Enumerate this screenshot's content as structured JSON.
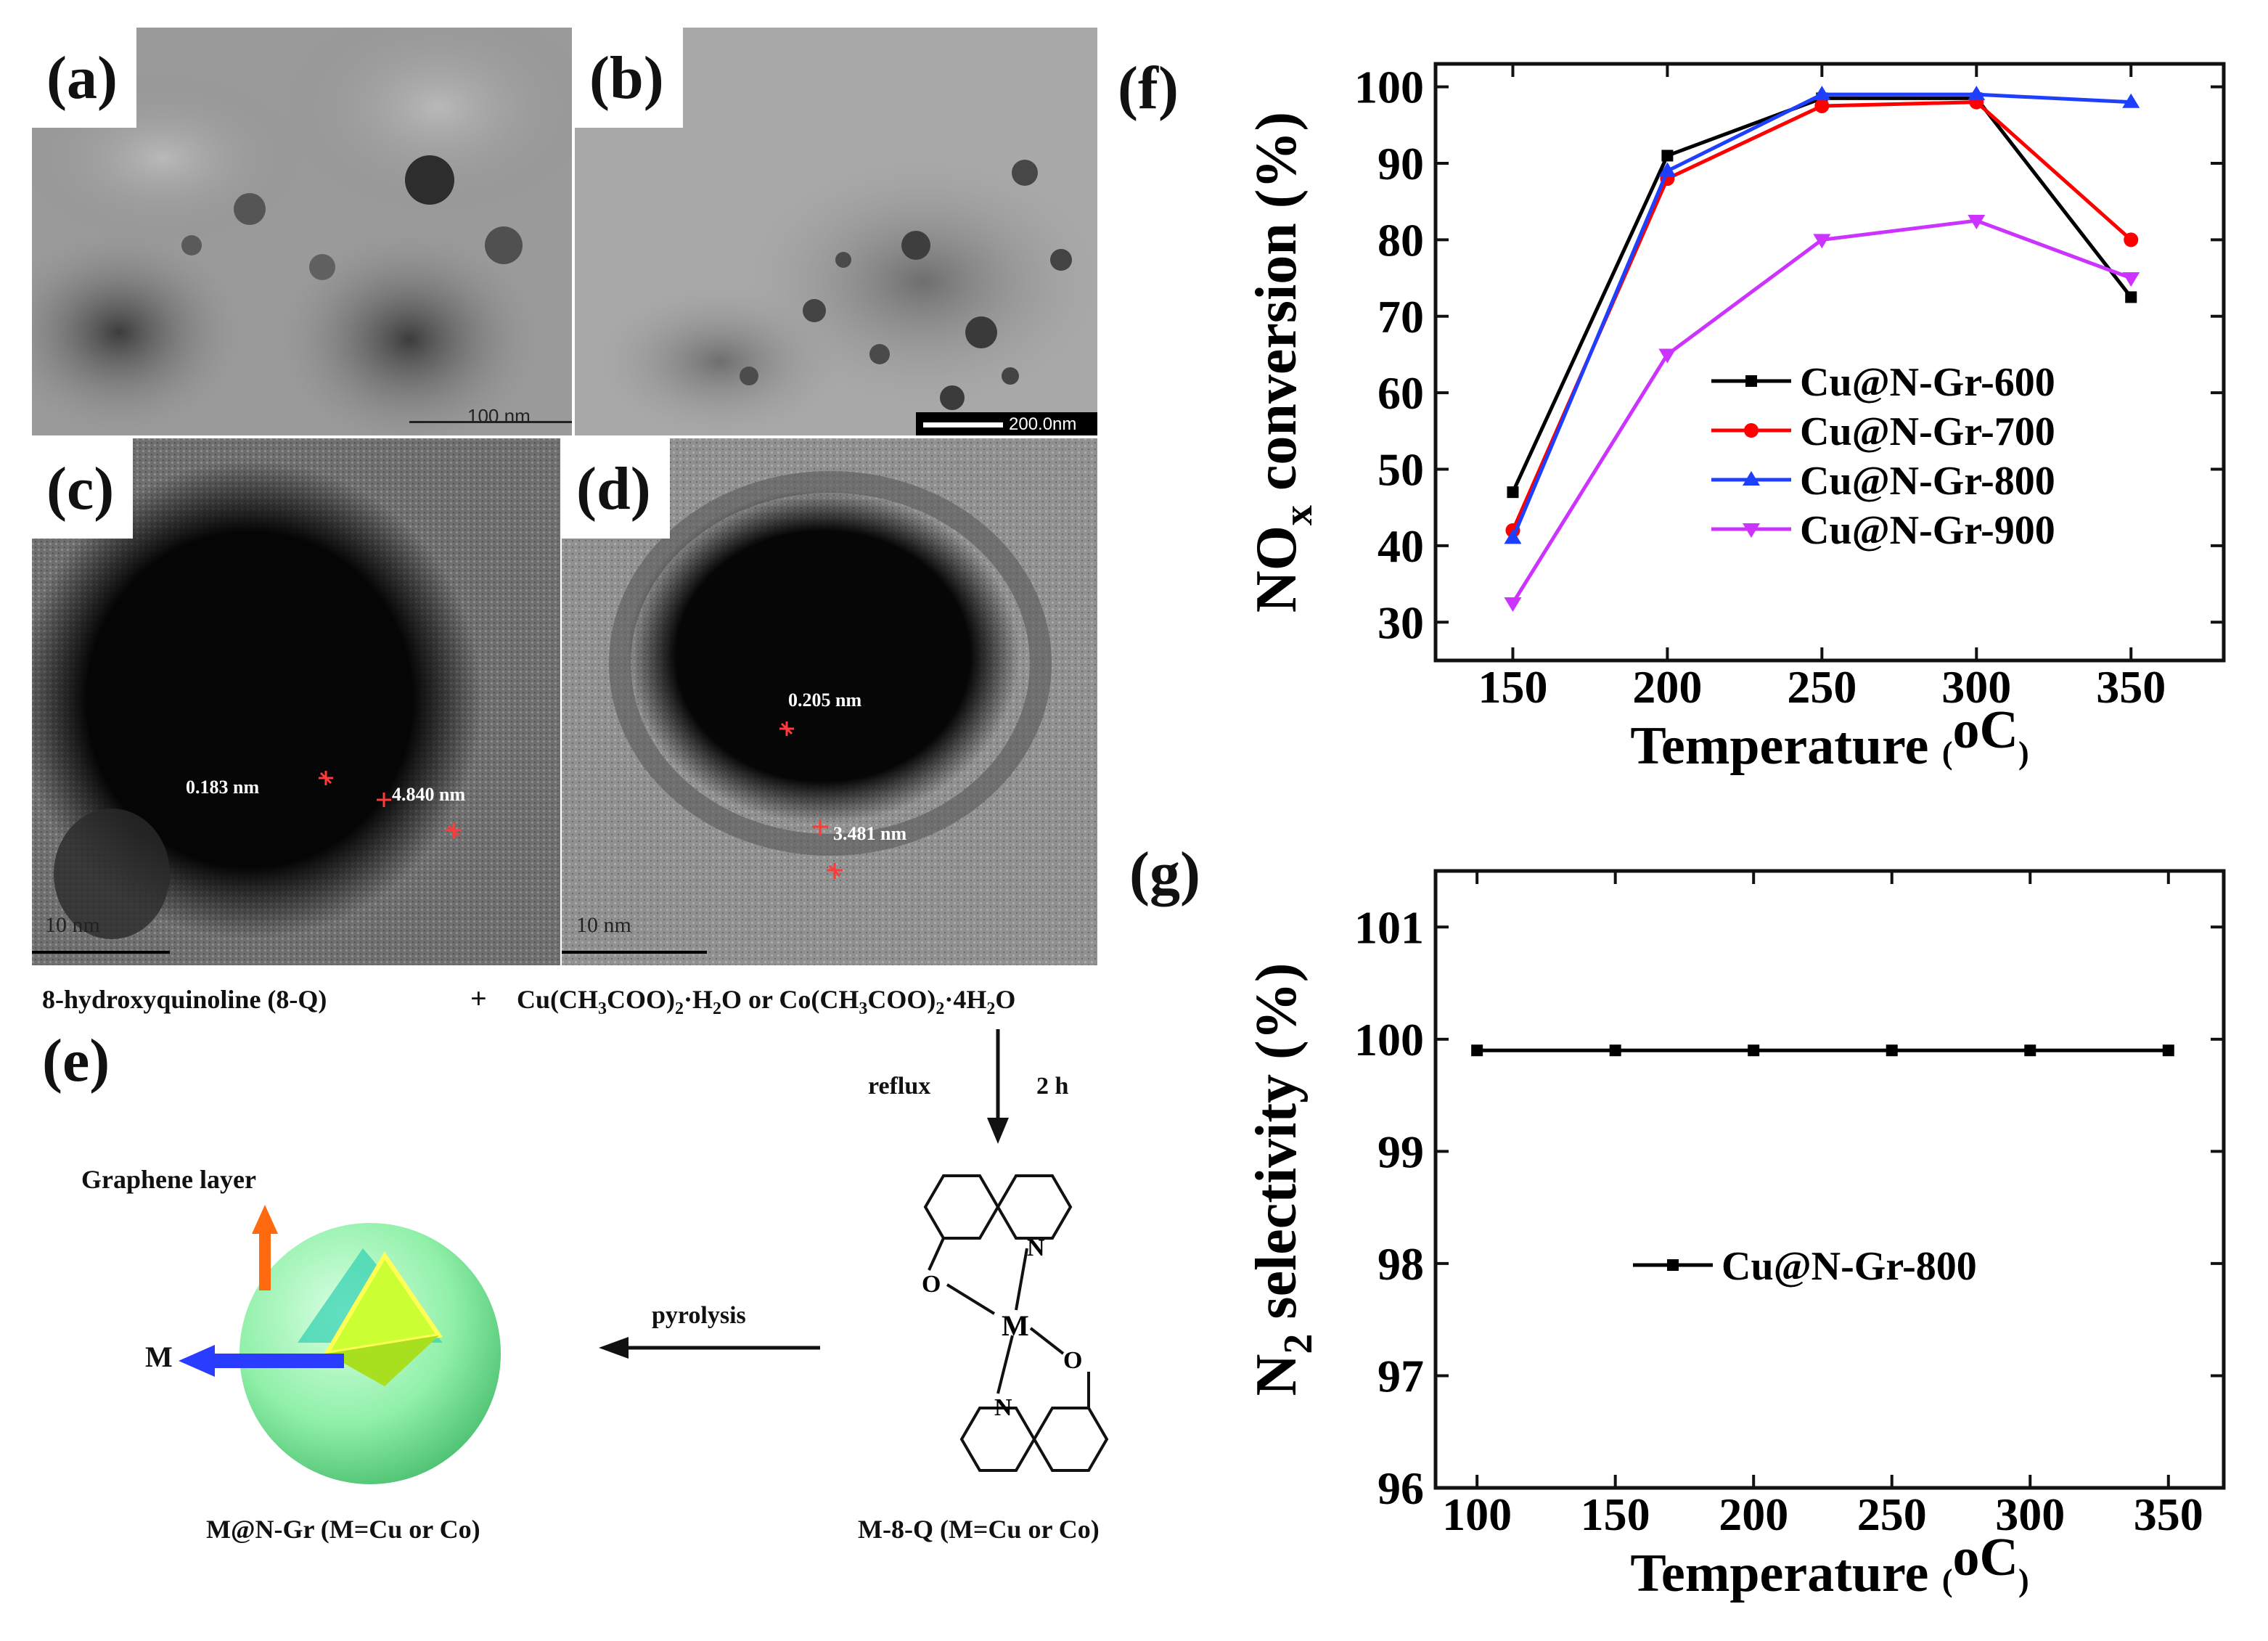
{
  "panels": {
    "a": {
      "label": "(a)",
      "scale_bar": "100 nm"
    },
    "b": {
      "label": "(b)",
      "scale_bar": "200.0nm"
    },
    "c": {
      "label": "(c)",
      "scale_bar": "10 nm",
      "spacing_1": "0.183 nm",
      "spacing_2": "4.840 nm"
    },
    "d": {
      "label": "(d)",
      "scale_bar": "10 nm",
      "spacing_1": "0.205 nm",
      "spacing_2": "3.481 nm"
    },
    "e": {
      "label": "(e)"
    },
    "f": {
      "label": "(f)"
    },
    "g": {
      "label": "(g)"
    }
  },
  "scheme": {
    "reactant_1": "8-hydroxyquinoline (8-Q)",
    "plus": "+",
    "reactant_2_a": "Cu(CH",
    "reactant_2_b": "COO)",
    "reactant_2_c": "·H",
    "reactant_2_d": "O or Co(CH",
    "reactant_2_e": "COO)",
    "reactant_2_f": "·4H",
    "reactant_2_g": "O",
    "sub_3": "3",
    "sub_2": "2",
    "sub_4": "4",
    "step1_condition_left": "reflux",
    "step1_condition_right": "2 h",
    "intermediate": "M-8-Q (M=Cu or Co)",
    "step2_condition": "pyrolysis",
    "product": "M@N-Gr (M=Cu or Co)",
    "graphene_label": "Graphene layer",
    "metal_label": "M",
    "atom_N": "N",
    "atom_O": "O",
    "atom_M": "M"
  },
  "colors": {
    "series_600": "#000000",
    "series_700": "#ff0000",
    "series_800": "#1f3fff",
    "series_900": "#cc33ff",
    "arrow_orange": "#ff6a10",
    "arrow_blue": "#2a3cff",
    "sphere_green": "#8ff0a8"
  },
  "chart_data": [
    {
      "id": "f",
      "type": "line",
      "xlabel": "Temperature",
      "xunit": "oC",
      "ylabel_main": "NO",
      "ylabel_sub": "x",
      "ylabel_rest": " conversion (%)",
      "x": [
        150,
        200,
        250,
        300,
        350
      ],
      "xticks": [
        "150",
        "200",
        "250",
        "300",
        "350"
      ],
      "yticks": [
        "30",
        "40",
        "50",
        "60",
        "70",
        "80",
        "90",
        "100"
      ],
      "xlim": [
        125,
        380
      ],
      "ylim": [
        25,
        103
      ],
      "legend_position": "center-right",
      "series": [
        {
          "name": "Cu@N-Gr-600",
          "marker": "square",
          "color": "#000000",
          "values": [
            47,
            91,
            98.5,
            98.5,
            72.5
          ]
        },
        {
          "name": "Cu@N-Gr-700",
          "marker": "circle",
          "color": "#ff0000",
          "values": [
            42,
            88,
            97.5,
            98,
            80
          ]
        },
        {
          "name": "Cu@N-Gr-800",
          "marker": "triangle-up",
          "color": "#1f3fff",
          "values": [
            41,
            89,
            99,
            99,
            98
          ]
        },
        {
          "name": "Cu@N-Gr-900",
          "marker": "triangle-down",
          "color": "#cc33ff",
          "values": [
            32.5,
            65,
            80,
            82.5,
            75
          ]
        }
      ]
    },
    {
      "id": "g",
      "type": "line",
      "xlabel": "Temperature",
      "xunit": "oC",
      "ylabel_main": "N",
      "ylabel_sub": "2",
      "ylabel_rest": " selectivity (%)",
      "x": [
        100,
        150,
        200,
        250,
        300,
        350
      ],
      "xticks": [
        "100",
        "150",
        "200",
        "250",
        "300",
        "350"
      ],
      "yticks": [
        "96",
        "97",
        "98",
        "99",
        "100",
        "101"
      ],
      "xlim": [
        85,
        370
      ],
      "ylim": [
        96,
        101.5
      ],
      "legend_position": "center",
      "series": [
        {
          "name": "Cu@N-Gr-800",
          "marker": "square",
          "color": "#000000",
          "values": [
            99.9,
            99.9,
            99.9,
            99.9,
            99.9,
            99.9
          ]
        }
      ]
    }
  ]
}
